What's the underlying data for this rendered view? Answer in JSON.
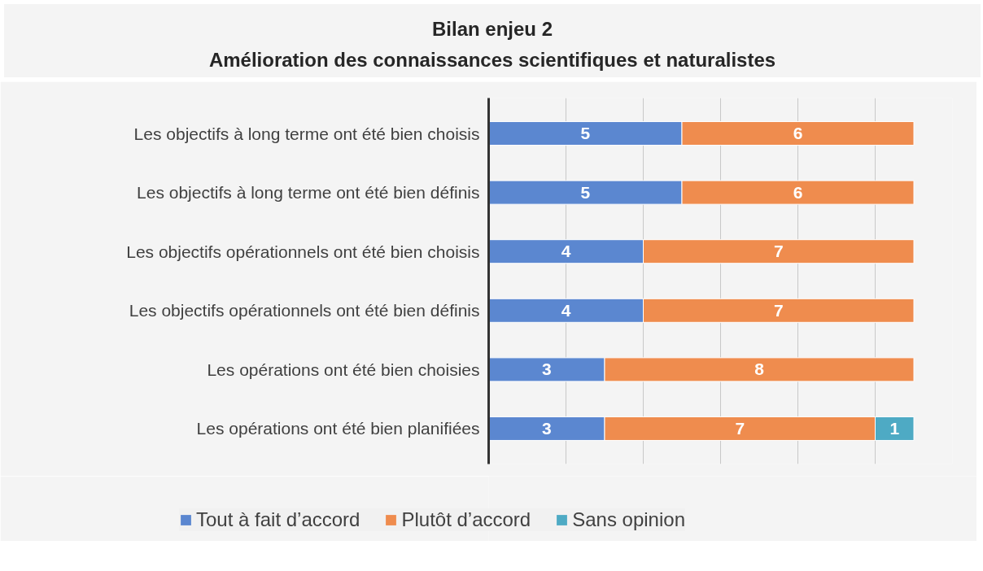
{
  "chart_data": {
    "type": "bar",
    "orientation": "horizontal",
    "stacked": true,
    "title": "Bilan enjeu 2",
    "subtitle": "Amélioration des connaissances scientifiques et naturalistes",
    "categories": [
      "Les objectifs à long terme ont été bien choisis",
      "Les objectifs à long terme ont été bien définis",
      "Les objectifs opérationnels ont été bien choisis",
      "Les objectifs opérationnels ont été bien définis",
      "Les opérations ont été bien choisies",
      "Les opérations ont été bien planifiées"
    ],
    "series": [
      {
        "name": "Tout à fait d’accord",
        "color": "#5b87d0",
        "values": [
          5,
          5,
          4,
          4,
          3,
          3
        ]
      },
      {
        "name": "Plutôt d’accord",
        "color": "#ef8c4e",
        "values": [
          6,
          6,
          7,
          7,
          8,
          7
        ]
      },
      {
        "name": "Sans opinion",
        "color": "#4eaac4",
        "values": [
          null,
          null,
          null,
          null,
          null,
          1
        ]
      }
    ],
    "xlim": [
      0,
      12
    ],
    "xticks": [
      {
        "value": 0,
        "label": null
      },
      {
        "value": 2,
        "label": null
      },
      {
        "value": 4,
        "label": null
      },
      {
        "value": 6,
        "label": null
      },
      {
        "value": 8,
        "label": null
      },
      {
        "value": 10,
        "label": null
      },
      {
        "value": 12,
        "label": null
      }
    ],
    "tick_labels": "y",
    "grid": "x",
    "legend": "bottom",
    "data_labels": true
  }
}
